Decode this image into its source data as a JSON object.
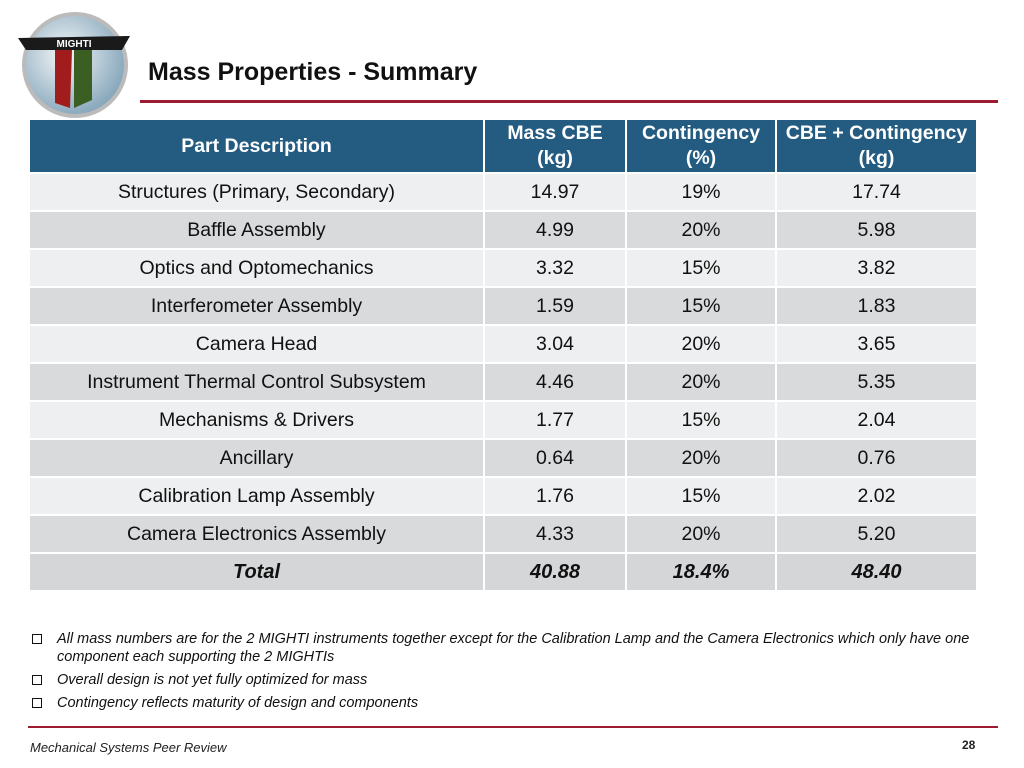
{
  "logo": {
    "label": "MIGHTI"
  },
  "header": {
    "title": "Mass Properties - Summary"
  },
  "table": {
    "columns": [
      "Part Description",
      "Mass CBE (kg)",
      "Contingency (%)",
      "CBE + Contingency (kg)"
    ],
    "rows": [
      [
        "Structures (Primary, Secondary)",
        "14.97",
        "19%",
        "17.74"
      ],
      [
        "Baffle Assembly",
        "4.99",
        "20%",
        "5.98"
      ],
      [
        "Optics and Optomechanics",
        "3.32",
        "15%",
        "3.82"
      ],
      [
        "Interferometer Assembly",
        "1.59",
        "15%",
        "1.83"
      ],
      [
        "Camera Head",
        "3.04",
        "20%",
        "3.65"
      ],
      [
        "Instrument Thermal Control Subsystem",
        "4.46",
        "20%",
        "5.35"
      ],
      [
        "Mechanisms & Drivers",
        "1.77",
        "15%",
        "2.04"
      ],
      [
        "Ancillary",
        "0.64",
        "20%",
        "0.76"
      ],
      [
        "Calibration Lamp Assembly",
        "1.76",
        "15%",
        "2.02"
      ],
      [
        "Camera Electronics Assembly",
        "4.33",
        "20%",
        "5.20"
      ]
    ],
    "total": [
      "Total",
      "40.88",
      "18.4%",
      "48.40"
    ]
  },
  "notes": [
    "All mass numbers are for the 2 MIGHTI instruments together except for the Calibration Lamp and the Camera Electronics which only have one component each supporting the 2 MIGHTIs",
    "Overall design is not yet fully optimized for mass",
    "Contingency reflects maturity of design and components"
  ],
  "footer": {
    "text": "Mechanical Systems Peer Review",
    "page": "28"
  }
}
